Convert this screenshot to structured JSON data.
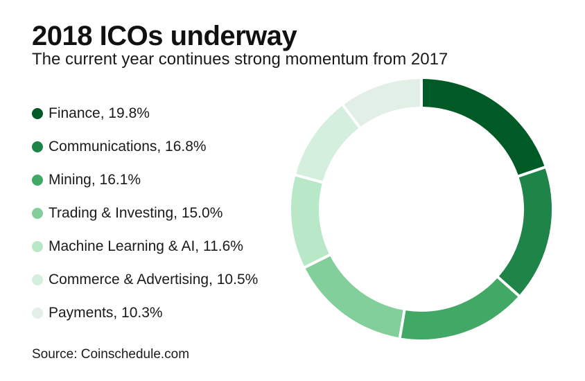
{
  "title": "2018 ICOs underway",
  "subtitle": "The current year continues strong momentum from 2017",
  "source": "Source: Coinschedule.com",
  "chart_data": {
    "type": "pie",
    "style": "donut",
    "legend_placement": "left",
    "categories": [
      "Finance",
      "Communications",
      "Mining",
      "Trading & Investing",
      "Machine Learning & AI",
      "Commerce & Advertising",
      "Payments"
    ],
    "values": [
      19.8,
      16.8,
      16.1,
      15.0,
      11.6,
      10.5,
      10.3
    ],
    "unit": "%",
    "colors": [
      "#005a25",
      "#1e8447",
      "#41a865",
      "#83cf9c",
      "#b9e8c8",
      "#d4efdd",
      "#e2efe7"
    ],
    "legend_labels": [
      "Finance, 19.8%",
      "Communications, 16.8%",
      "Mining, 16.1%",
      "Trading & Investing, 15.0%",
      "Machine Learning & AI, 11.6%",
      "Commerce & Advertising, 10.5%",
      "Payments, 10.3%"
    ]
  }
}
